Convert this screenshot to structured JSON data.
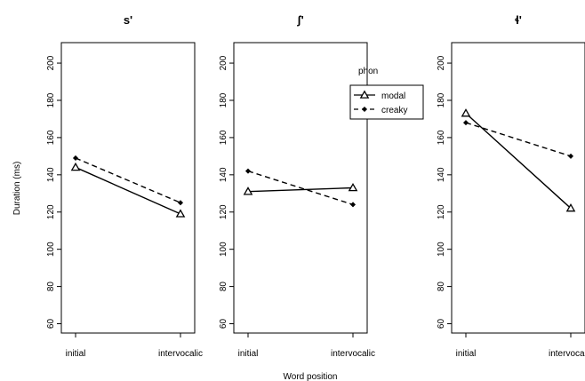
{
  "chart_data": {
    "type": "line",
    "xlabel": "Word position",
    "ylabel": "Duration (ms)",
    "ylim": [
      55,
      211
    ],
    "yticks": [
      60,
      80,
      100,
      120,
      140,
      160,
      180,
      200
    ],
    "categories": [
      "initial",
      "intervocalic"
    ],
    "legend": {
      "title": "phon",
      "placement": "top-right of middle panel",
      "entries": [
        {
          "name": "modal",
          "line": "solid",
          "marker": "triangle"
        },
        {
          "name": "creaky",
          "line": "dashed",
          "marker": "diamond"
        }
      ]
    },
    "panels": [
      {
        "title": "s'",
        "series": [
          {
            "name": "modal",
            "values": [
              144,
              119
            ]
          },
          {
            "name": "creaky",
            "values": [
              149,
              125
            ]
          }
        ]
      },
      {
        "title": "ʃ'",
        "series": [
          {
            "name": "modal",
            "values": [
              131,
              133
            ]
          },
          {
            "name": "creaky",
            "values": [
              142,
              124
            ]
          }
        ]
      },
      {
        "title": "ɬ'",
        "series": [
          {
            "name": "modal",
            "values": [
              173,
              122
            ]
          },
          {
            "name": "creaky",
            "values": [
              168,
              150
            ]
          }
        ]
      }
    ]
  }
}
